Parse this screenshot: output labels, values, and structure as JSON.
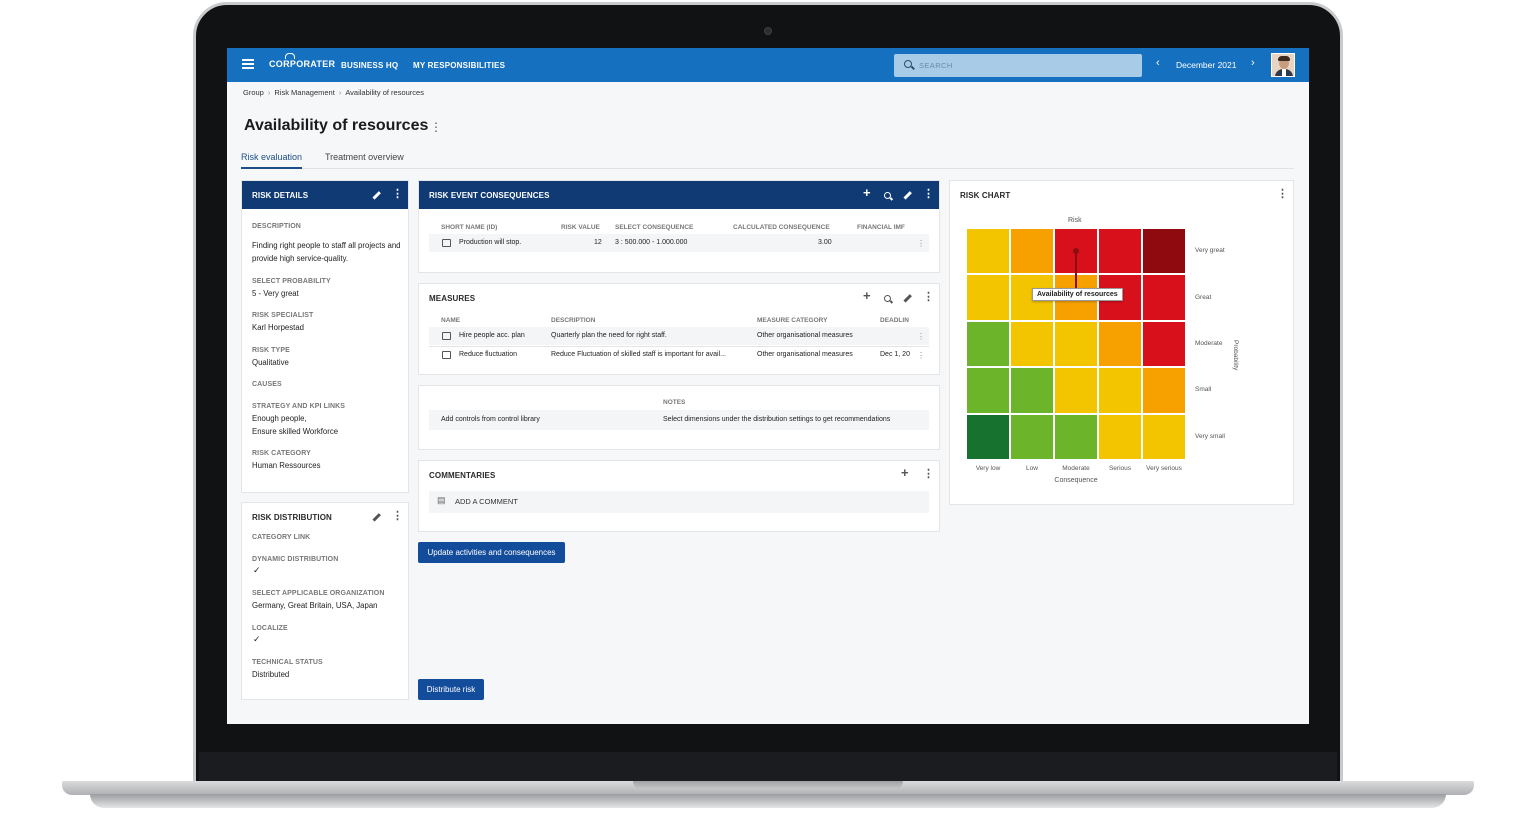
{
  "topbar": {
    "logo": "CORPORATER",
    "nav": [
      "BUSINESS HQ",
      "MY RESPONSIBILITIES"
    ],
    "search_placeholder": "SEARCH",
    "period": "December 2021"
  },
  "breadcrumb": [
    "Group",
    "Risk Management",
    "Availability of resources"
  ],
  "page": {
    "title": "Availability of resources",
    "tabs": [
      "Risk evaluation",
      "Treatment overview"
    ]
  },
  "risk_details": {
    "title": "RISK DETAILS",
    "fields": [
      {
        "label": "DESCRIPTION",
        "value": "Finding right people to staff all projects and provide high service-quality."
      },
      {
        "label": "SELECT PROBABILITY",
        "value": "5 - Very great"
      },
      {
        "label": "RISK SPECIALIST",
        "value": "Karl Horpestad"
      },
      {
        "label": "RISK TYPE",
        "value": "Qualitative"
      },
      {
        "label": "CAUSES",
        "value": ""
      },
      {
        "label": "STRATEGY AND KPI LINKS",
        "value": "Enough people,"
      },
      {
        "label": "",
        "value": "Ensure skilled Workforce"
      },
      {
        "label": "RISK CATEGORY",
        "value": "Human Ressources"
      }
    ]
  },
  "risk_distribution": {
    "title": "RISK DISTRIBUTION",
    "fields": [
      {
        "label": "CATEGORY LINK",
        "value": ""
      },
      {
        "label": "DYNAMIC DISTRIBUTION",
        "value": "✓"
      },
      {
        "label": "SELECT APPLICABLE ORGANIZATION",
        "value": "Germany, Great Britain, USA, Japan"
      },
      {
        "label": "LOCALIZE",
        "value": "✓"
      },
      {
        "label": "TECHNICAL STATUS",
        "value": "Distributed"
      }
    ]
  },
  "consequences": {
    "title": "RISK EVENT CONSEQUENCES",
    "columns": [
      "SHORT NAME (ID)",
      "RISK VALUE",
      "SELECT CONSEQUENCE",
      "CALCULATED CONSEQUENCE",
      "FINANCIAL IMF"
    ],
    "rows": [
      {
        "name": "Production will stop.",
        "risk_value": "12",
        "consequence": "3 : 500.000 - 1.000.000",
        "calculated": "3.00"
      }
    ]
  },
  "measures": {
    "title": "MEASURES",
    "columns": [
      "NAME",
      "DESCRIPTION",
      "MEASURE CATEGORY",
      "DEADLIN"
    ],
    "rows": [
      {
        "name": "Hire people acc. plan",
        "description": "Quarterly plan the need for right staff.",
        "category": "Other organisational measures",
        "deadline": ""
      },
      {
        "name": "Reduce fluctuation",
        "description": "Reduce Fluctuation of skilled staff is important for avail...",
        "category": "Other organisational measures",
        "deadline": "Dec 1, 20"
      }
    ]
  },
  "notes": {
    "header": "NOTES",
    "left": "Add controls from control library",
    "right": "Select dimensions under the distribution settings to get recommendations"
  },
  "commentaries": {
    "title": "COMMENTARIES",
    "add_label": "ADD A COMMENT"
  },
  "buttons": {
    "update": "Update activities and consequences",
    "distribute": "Distribute risk"
  },
  "risk_chart": {
    "title": "RISK CHART"
  },
  "chart_data": {
    "type": "heatmap",
    "title": "Risk",
    "xlabel": "Consequence",
    "ylabel": "Probability",
    "x_categories": [
      "Very low",
      "Low",
      "Moderate",
      "Serious",
      "Very serious"
    ],
    "y_categories": [
      "Very great",
      "Great",
      "Moderate",
      "Small",
      "Very small"
    ],
    "cell_colors": [
      [
        "#f2c500",
        "#f7a100",
        "#d8101c",
        "#d8101c",
        "#8e0a0e"
      ],
      [
        "#f2c500",
        "#f2c500",
        "#f7a100",
        "#d8101c",
        "#d8101c"
      ],
      [
        "#6cb42a",
        "#f2c500",
        "#f2c500",
        "#f7a100",
        "#d8101c"
      ],
      [
        "#6cb42a",
        "#6cb42a",
        "#f2c500",
        "#f2c500",
        "#f7a100"
      ],
      [
        "#17722f",
        "#6cb42a",
        "#6cb42a",
        "#f2c500",
        "#f2c500"
      ]
    ],
    "points": [
      {
        "label": "Availability of resources",
        "x": "Moderate",
        "y": "Very great",
        "to_y": "Great"
      }
    ]
  }
}
